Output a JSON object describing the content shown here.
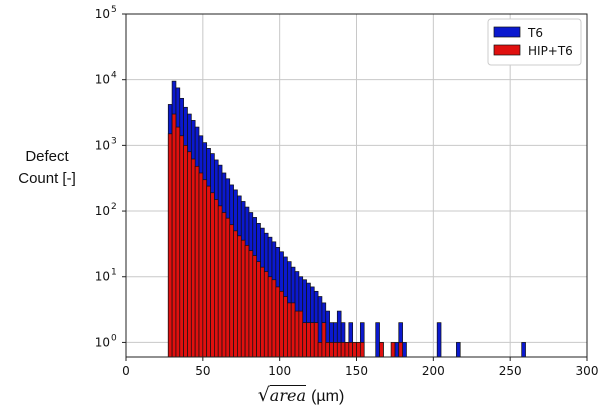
{
  "chart_data": {
    "type": "bar",
    "title": "",
    "xlabel_math": "area",
    "xlabel_unit": "(µm)",
    "ylabel_line1": "Defect",
    "ylabel_line2": "Count [-]",
    "x_range": [
      0,
      300
    ],
    "y_range": [
      0.6,
      100000
    ],
    "y_scale": "log",
    "grid": true,
    "legend_position": "top-right",
    "x_ticks": [
      0,
      50,
      100,
      150,
      200,
      250,
      300
    ],
    "y_ticks": [
      "10^0",
      "10^1",
      "10^2",
      "10^3",
      "10^4",
      "10^5"
    ],
    "bin_width": 2.5,
    "series": [
      {
        "name": "T6",
        "color": "#0b19cf",
        "bin_start": [
          27.5,
          30,
          32.5,
          35,
          37.5,
          40,
          42.5,
          45,
          47.5,
          50,
          52.5,
          55,
          57.5,
          60,
          62.5,
          65,
          67.5,
          70,
          72.5,
          75,
          77.5,
          80,
          82.5,
          85,
          87.5,
          90,
          92.5,
          95,
          97.5,
          100,
          102.5,
          105,
          107.5,
          110,
          112.5,
          115,
          117.5,
          120,
          122.5,
          125,
          127.5,
          130,
          132.5,
          135,
          137.5,
          140,
          142.5,
          145,
          147.5,
          150,
          152.5,
          162.5,
          165,
          175,
          177.5,
          180,
          202.5,
          215,
          257.5
        ],
        "values": [
          4200,
          9500,
          7500,
          5200,
          3800,
          3000,
          2400,
          1900,
          1400,
          1100,
          900,
          750,
          600,
          500,
          380,
          310,
          250,
          210,
          170,
          140,
          115,
          95,
          80,
          65,
          55,
          46,
          40,
          34,
          28,
          24,
          20,
          17,
          14,
          12,
          10,
          9,
          8,
          7,
          6,
          5,
          4,
          3,
          2,
          2,
          3,
          2,
          1,
          2,
          1,
          1,
          2,
          2,
          1,
          1,
          2,
          1,
          2,
          1,
          1
        ]
      },
      {
        "name": "HIP+T6",
        "color": "#e0100f",
        "bin_start": [
          27.5,
          30,
          32.5,
          35,
          37.5,
          40,
          42.5,
          45,
          47.5,
          50,
          52.5,
          55,
          57.5,
          60,
          62.5,
          65,
          67.5,
          70,
          72.5,
          75,
          77.5,
          80,
          82.5,
          85,
          87.5,
          90,
          92.5,
          95,
          97.5,
          100,
          102.5,
          105,
          107.5,
          110,
          112.5,
          115,
          117.5,
          120,
          122.5,
          125,
          127.5,
          130,
          132.5,
          135,
          137.5,
          140,
          142.5,
          145,
          147.5,
          150,
          152.5,
          165,
          172.5,
          177.5
        ],
        "values": [
          1500,
          3000,
          1900,
          1400,
          1000,
          800,
          620,
          480,
          380,
          300,
          240,
          190,
          150,
          120,
          95,
          78,
          62,
          50,
          42,
          36,
          30,
          25,
          21,
          17,
          14,
          12,
          10,
          9,
          7,
          6,
          5,
          4,
          4,
          3,
          3,
          2,
          2,
          2,
          2,
          1,
          2,
          1,
          1,
          1,
          1,
          1,
          1,
          1,
          1,
          1,
          1,
          1,
          1,
          1
        ]
      }
    ]
  }
}
